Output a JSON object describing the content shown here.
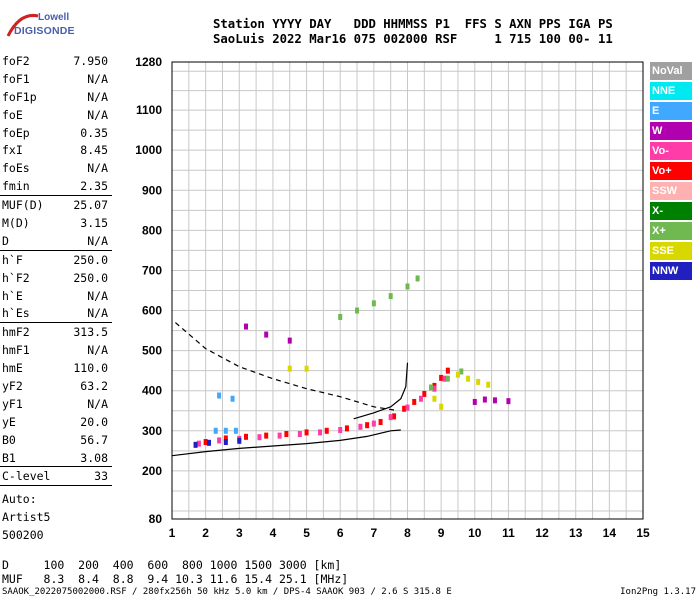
{
  "brand": {
    "line1": "Lowell",
    "line2": "DIGISONDE"
  },
  "header": {
    "labels": "Station YYYY DAY   DDD HHMMSS P1  FFS S AXN PPS IGA PS",
    "values": "SaoLuis 2022 Mar16 075 002000 RSF     1 715 100 00- 11"
  },
  "params": [
    {
      "name": "foF2",
      "value": "7.950"
    },
    {
      "name": "foF1",
      "value": "N/A"
    },
    {
      "name": "foF1p",
      "value": "N/A"
    },
    {
      "name": "foE",
      "value": "N/A"
    },
    {
      "name": "foEp",
      "value": "0.35"
    },
    {
      "name": "fxI",
      "value": "8.45"
    },
    {
      "name": "foEs",
      "value": "N/A"
    },
    {
      "name": "fmin",
      "value": "2.35"
    },
    {
      "name": "MUF(D)",
      "value": "25.07"
    },
    {
      "name": "M(D)",
      "value": "3.15"
    },
    {
      "name": "D",
      "value": "N/A"
    },
    {
      "name": "h`F",
      "value": "250.0"
    },
    {
      "name": "h`F2",
      "value": "250.0"
    },
    {
      "name": "h`E",
      "value": "N/A"
    },
    {
      "name": "h`Es",
      "value": "N/A"
    },
    {
      "name": "hmF2",
      "value": "313.5"
    },
    {
      "name": "hmF1",
      "value": "N/A"
    },
    {
      "name": "hmE",
      "value": "110.0"
    },
    {
      "name": "yF2",
      "value": "63.2"
    },
    {
      "name": "yF1",
      "value": "N/A"
    },
    {
      "name": "yE",
      "value": "20.0"
    },
    {
      "name": "B0",
      "value": "56.7"
    },
    {
      "name": "B1",
      "value": "3.08"
    },
    {
      "name": "C-level",
      "value": "33"
    }
  ],
  "auto": {
    "line1": "Auto:",
    "line2": "Artist5",
    "line3": "500200"
  },
  "legend": [
    {
      "label": "NoVal",
      "color": "#a0a0a0"
    },
    {
      "label": "NNE",
      "color": "#00e8f0"
    },
    {
      "label": "E",
      "color": "#40a8ff"
    },
    {
      "label": "W",
      "color": "#b000b0"
    },
    {
      "label": "Vo-",
      "color": "#ff3ca8"
    },
    {
      "label": "Vo+",
      "color": "#ff0000"
    },
    {
      "label": "SSW",
      "color": "#ffb0b0"
    },
    {
      "label": "X-",
      "color": "#008000"
    },
    {
      "label": "X+",
      "color": "#70b850"
    },
    {
      "label": "SSE",
      "color": "#d8d800"
    },
    {
      "label": "NNW",
      "color": "#2020c0"
    }
  ],
  "dmuf": {
    "d_row": "D     100  200  400  600  800 1000 1500 3000 [km]",
    "muf_row": "MUF   8.3  8.4  8.8  9.4 10.3 11.6 15.4 25.1 [MHz]"
  },
  "footer": "SAAOK_2022075002000.RSF / 280fx256h 50 kHz 5.0 km / DPS-4 SAAOK 903 / 2.6 S 315.8 E",
  "version": "Ion2Png 1.3.17",
  "chart_data": {
    "type": "scatter",
    "xlim": [
      1,
      15
    ],
    "ylim": [
      80,
      1280
    ],
    "x_ticks": [
      1,
      2,
      3,
      4,
      5,
      6,
      7,
      8,
      9,
      10,
      11,
      12,
      13,
      14,
      15
    ],
    "y_ticks": [
      80,
      200,
      300,
      400,
      500,
      600,
      700,
      800,
      900,
      1000,
      1100,
      1280
    ],
    "grid": true,
    "legend_position": "right",
    "series": [
      {
        "name": "Vo+",
        "color": "#ff0000",
        "points": [
          [
            2.0,
            272
          ],
          [
            2.6,
            281
          ],
          [
            3.2,
            285
          ],
          [
            3.8,
            288
          ],
          [
            4.4,
            292
          ],
          [
            5.0,
            296
          ],
          [
            5.6,
            300
          ],
          [
            6.2,
            306
          ],
          [
            6.8,
            314
          ],
          [
            7.2,
            322
          ],
          [
            7.6,
            336
          ],
          [
            7.9,
            355
          ],
          [
            8.2,
            372
          ],
          [
            8.5,
            392
          ],
          [
            8.8,
            412
          ],
          [
            9.0,
            432
          ],
          [
            9.2,
            450
          ]
        ]
      },
      {
        "name": "Vo-",
        "color": "#ff3ca8",
        "points": [
          [
            1.8,
            268
          ],
          [
            2.4,
            276
          ],
          [
            3.0,
            280
          ],
          [
            3.6,
            284
          ],
          [
            4.2,
            288
          ],
          [
            4.8,
            292
          ],
          [
            5.4,
            296
          ],
          [
            6.0,
            302
          ],
          [
            6.6,
            310
          ],
          [
            7.0,
            318
          ],
          [
            7.5,
            334
          ],
          [
            8.0,
            358
          ],
          [
            8.4,
            380
          ],
          [
            8.8,
            405
          ],
          [
            9.1,
            430
          ]
        ]
      },
      {
        "name": "X+",
        "color": "#70b850",
        "points": [
          [
            6.0,
            584
          ],
          [
            6.5,
            600
          ],
          [
            7.0,
            618
          ],
          [
            7.5,
            636
          ],
          [
            8.0,
            660
          ],
          [
            8.3,
            680
          ],
          [
            8.7,
            408
          ],
          [
            9.2,
            430
          ],
          [
            9.6,
            448
          ]
        ]
      },
      {
        "name": "W",
        "color": "#b000b0",
        "points": [
          [
            10.0,
            372
          ],
          [
            10.3,
            378
          ],
          [
            10.6,
            376
          ],
          [
            11.0,
            374
          ],
          [
            3.2,
            560
          ],
          [
            3.8,
            540
          ],
          [
            4.5,
            525
          ]
        ]
      },
      {
        "name": "SSE",
        "color": "#d8d800",
        "points": [
          [
            9.5,
            440
          ],
          [
            9.8,
            430
          ],
          [
            10.1,
            422
          ],
          [
            10.4,
            415
          ],
          [
            8.8,
            380
          ],
          [
            9.0,
            360
          ],
          [
            4.5,
            455
          ],
          [
            5.0,
            455
          ]
        ]
      },
      {
        "name": "NNW",
        "color": "#2020c0",
        "points": [
          [
            1.7,
            265
          ],
          [
            2.1,
            270
          ],
          [
            2.6,
            272
          ],
          [
            3.0,
            275
          ]
        ]
      },
      {
        "name": "E",
        "color": "#40a8ff",
        "points": [
          [
            2.3,
            300
          ],
          [
            2.6,
            300
          ],
          [
            2.9,
            300
          ],
          [
            2.4,
            388
          ],
          [
            2.8,
            380
          ]
        ]
      }
    ],
    "curves": [
      {
        "style": "solid",
        "points": [
          [
            1,
            238
          ],
          [
            2,
            248
          ],
          [
            3,
            256
          ],
          [
            4,
            262
          ],
          [
            5,
            268
          ],
          [
            6,
            276
          ],
          [
            6.8,
            286
          ],
          [
            7.5,
            300
          ],
          [
            7.8,
            302
          ]
        ]
      },
      {
        "style": "dashed",
        "points": [
          [
            1.1,
            570
          ],
          [
            2,
            505
          ],
          [
            3,
            460
          ],
          [
            4,
            430
          ],
          [
            5,
            405
          ],
          [
            6,
            385
          ],
          [
            7,
            360
          ],
          [
            7.6,
            352
          ]
        ]
      },
      {
        "style": "solid",
        "points": [
          [
            6.4,
            330
          ],
          [
            7.0,
            345
          ],
          [
            7.5,
            360
          ],
          [
            7.8,
            380
          ],
          [
            7.95,
            410
          ],
          [
            8.0,
            470
          ]
        ]
      }
    ]
  }
}
